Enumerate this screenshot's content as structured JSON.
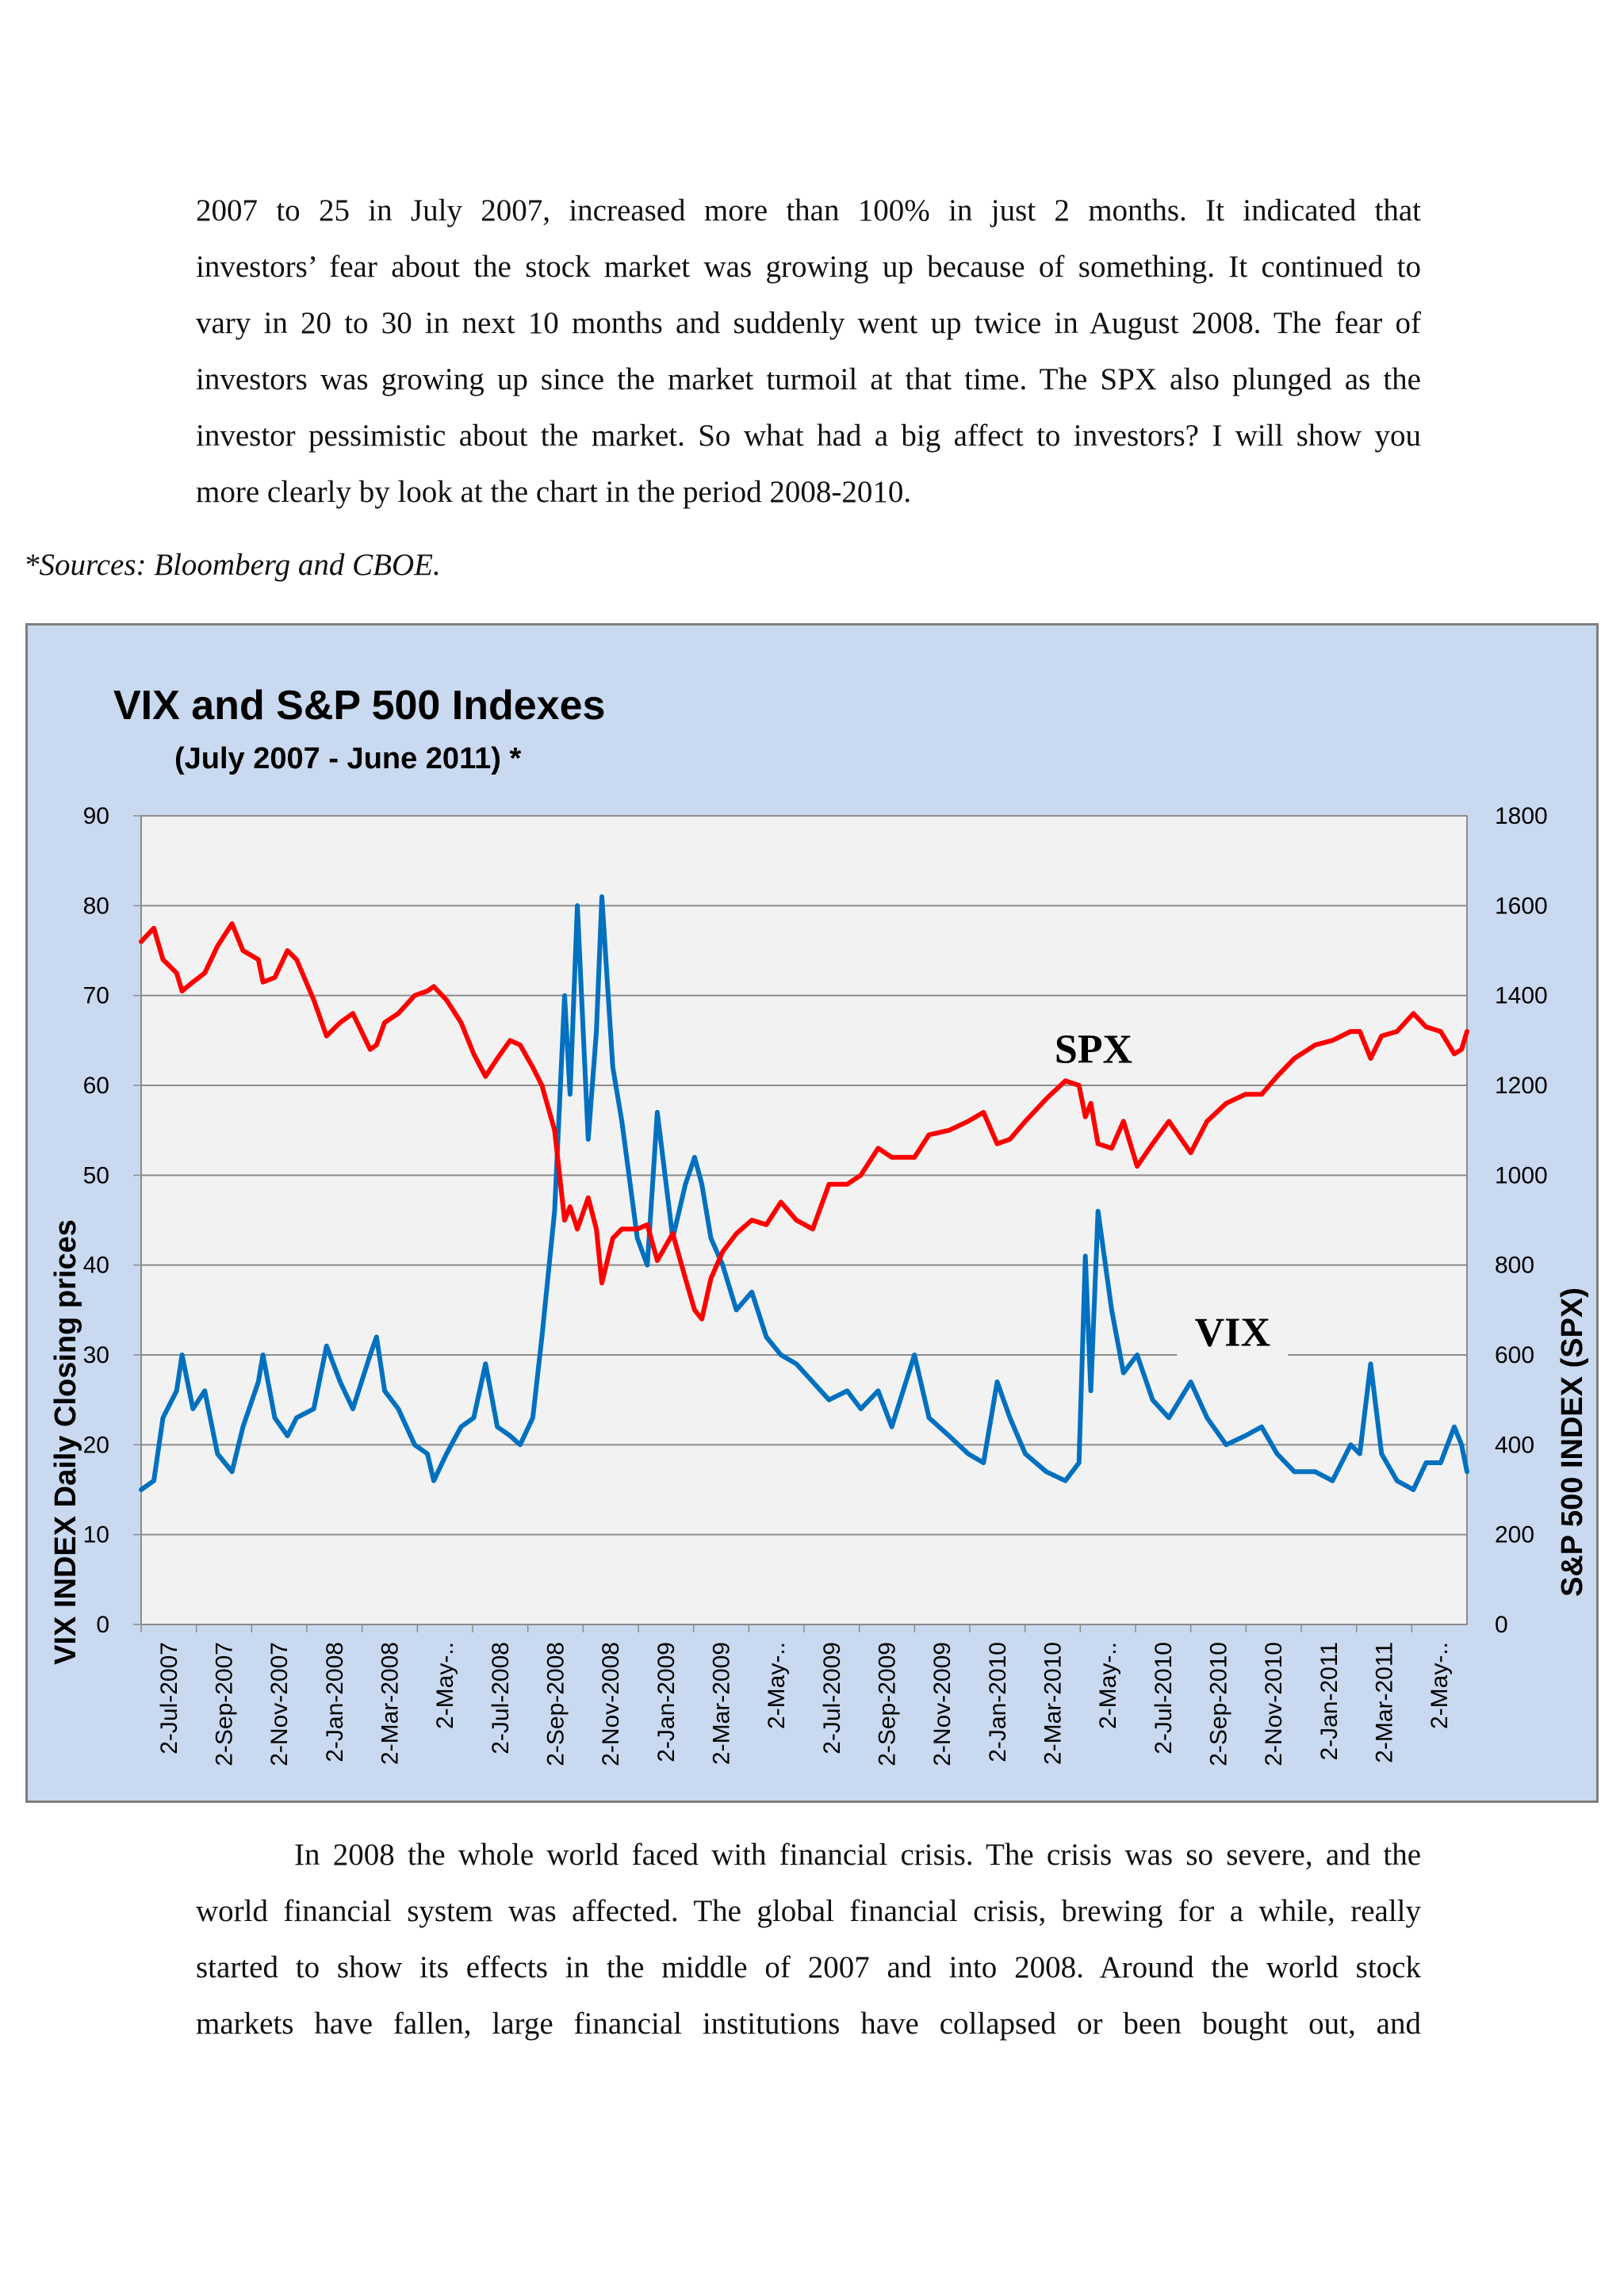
{
  "paragraph_top": {
    "lines": [
      "2007 to 25 in July 2007, increased more than 100% in just 2 months. It indicated that",
      "investors’ fear about the stock market was growing up because of something. It continued to",
      "vary in 20 to 30 in next 10 months and suddenly went up twice in August 2008.  The fear of",
      "investors was growing up since the market turmoil at that time. The SPX also plunged as the",
      "investor pessimistic about the market. So what had a big affect to investors? I will show you",
      "more clearly by look at the chart in the period 2008-2010."
    ]
  },
  "source_note": "*Sources: Bloomberg and CBOE.",
  "paragraph_bottom": {
    "lines": [
      "In 2008 the whole world faced with financial crisis. The crisis was so severe, and the",
      "world financial system was affected. The global financial crisis, brewing for a while, really",
      "started to show its effects in the middle of 2007 and into 2008. Around the world stock",
      "markets have fallen, large financial institutions have collapsed or been bought out, and"
    ]
  },
  "colors": {
    "vix": "#0070c0",
    "spx": "#ff0000",
    "plot_bg": "#f2f2f2",
    "frame_bg": "#c9d9ef",
    "grid": "#8c8c8c"
  },
  "chart_data": {
    "type": "line",
    "title": "VIX and S&P 500 Indexes",
    "subtitle": "(July 2007 - June 2011) *",
    "ylabel_left": "VIX   INDEX Daily Closing prices",
    "ylabel_right": "S&P 500  INDEX (SPX)",
    "ylim_left": [
      0,
      90
    ],
    "ylim_right": [
      0,
      1800
    ],
    "yticks_left": [
      "0",
      "10",
      "20",
      "30",
      "40",
      "50",
      "60",
      "70",
      "80",
      "90"
    ],
    "yticks_right": [
      "0",
      "200",
      "400",
      "600",
      "800",
      "1000",
      "1200",
      "1400",
      "1600",
      "1800"
    ],
    "xticks": [
      "2-Jul-2007",
      "2-Sep-2007",
      "2-Nov-2007",
      "2-Jan-2008",
      "2-Mar-2008",
      "2-May-..",
      "2-Jul-2008",
      "2-Sep-2008",
      "2-Nov-2008",
      "2-Jan-2009",
      "2-Mar-2009",
      "2-May-..",
      "2-Jul-2009",
      "2-Sep-2009",
      "2-Nov-2009",
      "2-Jan-2010",
      "2-Mar-2010",
      "2-May-..",
      "2-Jul-2010",
      "2-Sep-2010",
      "2-Nov-2010",
      "2-Jan-2011",
      "2-Mar-2011",
      "2-May-.."
    ],
    "x_range": [
      "2007-07-02",
      "2011-06-30"
    ],
    "grid": true,
    "annotations": [
      {
        "text": "SPX",
        "series": "S&P 500",
        "date": "2010-05-15",
        "value": 1250
      },
      {
        "text": "VIX",
        "series": "VIX",
        "date": "2010-10-15",
        "value": 31
      }
    ],
    "series": [
      {
        "name": "VIX",
        "axis": "left",
        "points": [
          [
            "2007-07-02",
            15
          ],
          [
            "2007-07-16",
            16
          ],
          [
            "2007-07-26",
            23
          ],
          [
            "2007-08-10",
            26
          ],
          [
            "2007-08-16",
            30
          ],
          [
            "2007-08-28",
            24
          ],
          [
            "2007-09-10",
            26
          ],
          [
            "2007-09-24",
            19
          ],
          [
            "2007-10-10",
            17
          ],
          [
            "2007-10-22",
            22
          ],
          [
            "2007-11-08",
            27
          ],
          [
            "2007-11-13",
            30
          ],
          [
            "2007-11-26",
            23
          ],
          [
            "2007-12-10",
            21
          ],
          [
            "2007-12-20",
            23
          ],
          [
            "2008-01-08",
            24
          ],
          [
            "2008-01-22",
            31
          ],
          [
            "2008-02-06",
            27
          ],
          [
            "2008-02-20",
            24
          ],
          [
            "2008-03-10",
            30
          ],
          [
            "2008-03-17",
            32
          ],
          [
            "2008-03-26",
            26
          ],
          [
            "2008-04-10",
            24
          ],
          [
            "2008-04-28",
            20
          ],
          [
            "2008-05-12",
            19
          ],
          [
            "2008-05-19",
            16
          ],
          [
            "2008-06-02",
            19
          ],
          [
            "2008-06-18",
            22
          ],
          [
            "2008-07-02",
            23
          ],
          [
            "2008-07-15",
            29
          ],
          [
            "2008-07-28",
            22
          ],
          [
            "2008-08-11",
            21
          ],
          [
            "2008-08-22",
            20
          ],
          [
            "2008-09-05",
            23
          ],
          [
            "2008-09-15",
            32
          ],
          [
            "2008-09-29",
            46
          ],
          [
            "2008-10-10",
            70
          ],
          [
            "2008-10-16",
            59
          ],
          [
            "2008-10-24",
            80
          ],
          [
            "2008-11-05",
            54
          ],
          [
            "2008-11-14",
            66
          ],
          [
            "2008-11-20",
            81
          ],
          [
            "2008-12-02",
            62
          ],
          [
            "2008-12-12",
            56
          ],
          [
            "2008-12-29",
            43
          ],
          [
            "2009-01-09",
            40
          ],
          [
            "2009-01-20",
            57
          ],
          [
            "2009-02-06",
            43
          ],
          [
            "2009-02-20",
            49
          ],
          [
            "2009-03-02",
            52
          ],
          [
            "2009-03-10",
            49
          ],
          [
            "2009-03-20",
            43
          ],
          [
            "2009-04-02",
            40
          ],
          [
            "2009-04-17",
            35
          ],
          [
            "2009-05-04",
            37
          ],
          [
            "2009-05-20",
            32
          ],
          [
            "2009-06-05",
            30
          ],
          [
            "2009-06-22",
            29
          ],
          [
            "2009-07-10",
            27
          ],
          [
            "2009-07-28",
            25
          ],
          [
            "2009-08-17",
            26
          ],
          [
            "2009-09-01",
            24
          ],
          [
            "2009-09-20",
            26
          ],
          [
            "2009-10-05",
            22
          ],
          [
            "2009-10-30",
            30
          ],
          [
            "2009-11-15",
            23
          ],
          [
            "2009-12-07",
            21
          ],
          [
            "2009-12-28",
            19
          ],
          [
            "2010-01-14",
            18
          ],
          [
            "2010-01-29",
            27
          ],
          [
            "2010-02-12",
            23
          ],
          [
            "2010-03-01",
            19
          ],
          [
            "2010-03-24",
            17
          ],
          [
            "2010-04-14",
            16
          ],
          [
            "2010-04-29",
            18
          ],
          [
            "2010-05-06",
            41
          ],
          [
            "2010-05-12",
            26
          ],
          [
            "2010-05-20",
            46
          ],
          [
            "2010-06-04",
            35
          ],
          [
            "2010-06-17",
            28
          ],
          [
            "2010-07-02",
            30
          ],
          [
            "2010-07-19",
            25
          ],
          [
            "2010-08-06",
            23
          ],
          [
            "2010-08-30",
            27
          ],
          [
            "2010-09-17",
            23
          ],
          [
            "2010-10-08",
            20
          ],
          [
            "2010-10-29",
            21
          ],
          [
            "2010-11-16",
            22
          ],
          [
            "2010-12-03",
            19
          ],
          [
            "2010-12-22",
            17
          ],
          [
            "2011-01-14",
            17
          ],
          [
            "2011-02-02",
            16
          ],
          [
            "2011-02-22",
            20
          ],
          [
            "2011-03-04",
            19
          ],
          [
            "2011-03-16",
            29
          ],
          [
            "2011-03-28",
            19
          ],
          [
            "2011-04-14",
            16
          ],
          [
            "2011-05-02",
            15
          ],
          [
            "2011-05-16",
            18
          ],
          [
            "2011-06-01",
            18
          ],
          [
            "2011-06-16",
            22
          ],
          [
            "2011-06-24",
            20
          ],
          [
            "2011-06-30",
            17
          ]
        ]
      },
      {
        "name": "S&P 500",
        "axis": "right",
        "points": [
          [
            "2007-07-02",
            1520
          ],
          [
            "2007-07-16",
            1550
          ],
          [
            "2007-07-26",
            1480
          ],
          [
            "2007-08-10",
            1450
          ],
          [
            "2007-08-16",
            1410
          ],
          [
            "2007-08-28",
            1430
          ],
          [
            "2007-09-10",
            1450
          ],
          [
            "2007-09-24",
            1510
          ],
          [
            "2007-10-10",
            1560
          ],
          [
            "2007-10-22",
            1500
          ],
          [
            "2007-11-08",
            1480
          ],
          [
            "2007-11-13",
            1430
          ],
          [
            "2007-11-26",
            1440
          ],
          [
            "2007-12-10",
            1500
          ],
          [
            "2007-12-20",
            1480
          ],
          [
            "2008-01-08",
            1390
          ],
          [
            "2008-01-22",
            1310
          ],
          [
            "2008-02-06",
            1340
          ],
          [
            "2008-02-20",
            1360
          ],
          [
            "2008-03-10",
            1280
          ],
          [
            "2008-03-17",
            1290
          ],
          [
            "2008-03-26",
            1340
          ],
          [
            "2008-04-10",
            1360
          ],
          [
            "2008-04-28",
            1400
          ],
          [
            "2008-05-12",
            1410
          ],
          [
            "2008-05-19",
            1420
          ],
          [
            "2008-06-02",
            1390
          ],
          [
            "2008-06-18",
            1340
          ],
          [
            "2008-07-02",
            1270
          ],
          [
            "2008-07-15",
            1220
          ],
          [
            "2008-07-28",
            1260
          ],
          [
            "2008-08-11",
            1300
          ],
          [
            "2008-08-22",
            1290
          ],
          [
            "2008-09-05",
            1240
          ],
          [
            "2008-09-15",
            1200
          ],
          [
            "2008-09-29",
            1100
          ],
          [
            "2008-10-10",
            900
          ],
          [
            "2008-10-16",
            930
          ],
          [
            "2008-10-24",
            880
          ],
          [
            "2008-11-05",
            950
          ],
          [
            "2008-11-14",
            880
          ],
          [
            "2008-11-20",
            760
          ],
          [
            "2008-12-02",
            860
          ],
          [
            "2008-12-12",
            880
          ],
          [
            "2008-12-29",
            880
          ],
          [
            "2009-01-09",
            890
          ],
          [
            "2009-01-20",
            810
          ],
          [
            "2009-02-06",
            870
          ],
          [
            "2009-02-20",
            770
          ],
          [
            "2009-03-02",
            700
          ],
          [
            "2009-03-10",
            680
          ],
          [
            "2009-03-20",
            770
          ],
          [
            "2009-04-02",
            830
          ],
          [
            "2009-04-17",
            870
          ],
          [
            "2009-05-04",
            900
          ],
          [
            "2009-05-20",
            890
          ],
          [
            "2009-06-05",
            940
          ],
          [
            "2009-06-22",
            900
          ],
          [
            "2009-07-10",
            880
          ],
          [
            "2009-07-28",
            980
          ],
          [
            "2009-08-17",
            980
          ],
          [
            "2009-09-01",
            1000
          ],
          [
            "2009-09-20",
            1060
          ],
          [
            "2009-10-05",
            1040
          ],
          [
            "2009-10-30",
            1040
          ],
          [
            "2009-11-15",
            1090
          ],
          [
            "2009-12-07",
            1100
          ],
          [
            "2009-12-28",
            1120
          ],
          [
            "2010-01-14",
            1140
          ],
          [
            "2010-01-29",
            1070
          ],
          [
            "2010-02-12",
            1080
          ],
          [
            "2010-03-01",
            1120
          ],
          [
            "2010-03-24",
            1170
          ],
          [
            "2010-04-14",
            1210
          ],
          [
            "2010-04-29",
            1200
          ],
          [
            "2010-05-06",
            1130
          ],
          [
            "2010-05-12",
            1160
          ],
          [
            "2010-05-20",
            1070
          ],
          [
            "2010-06-04",
            1060
          ],
          [
            "2010-06-17",
            1120
          ],
          [
            "2010-07-02",
            1020
          ],
          [
            "2010-07-19",
            1070
          ],
          [
            "2010-08-06",
            1120
          ],
          [
            "2010-08-30",
            1050
          ],
          [
            "2010-09-17",
            1120
          ],
          [
            "2010-10-08",
            1160
          ],
          [
            "2010-10-29",
            1180
          ],
          [
            "2010-11-16",
            1180
          ],
          [
            "2010-12-03",
            1220
          ],
          [
            "2010-12-22",
            1260
          ],
          [
            "2011-01-14",
            1290
          ],
          [
            "2011-02-02",
            1300
          ],
          [
            "2011-02-22",
            1320
          ],
          [
            "2011-03-04",
            1320
          ],
          [
            "2011-03-16",
            1260
          ],
          [
            "2011-03-28",
            1310
          ],
          [
            "2011-04-14",
            1320
          ],
          [
            "2011-05-02",
            1360
          ],
          [
            "2011-05-16",
            1330
          ],
          [
            "2011-06-01",
            1320
          ],
          [
            "2011-06-16",
            1270
          ],
          [
            "2011-06-24",
            1280
          ],
          [
            "2011-06-30",
            1320
          ]
        ]
      }
    ]
  }
}
